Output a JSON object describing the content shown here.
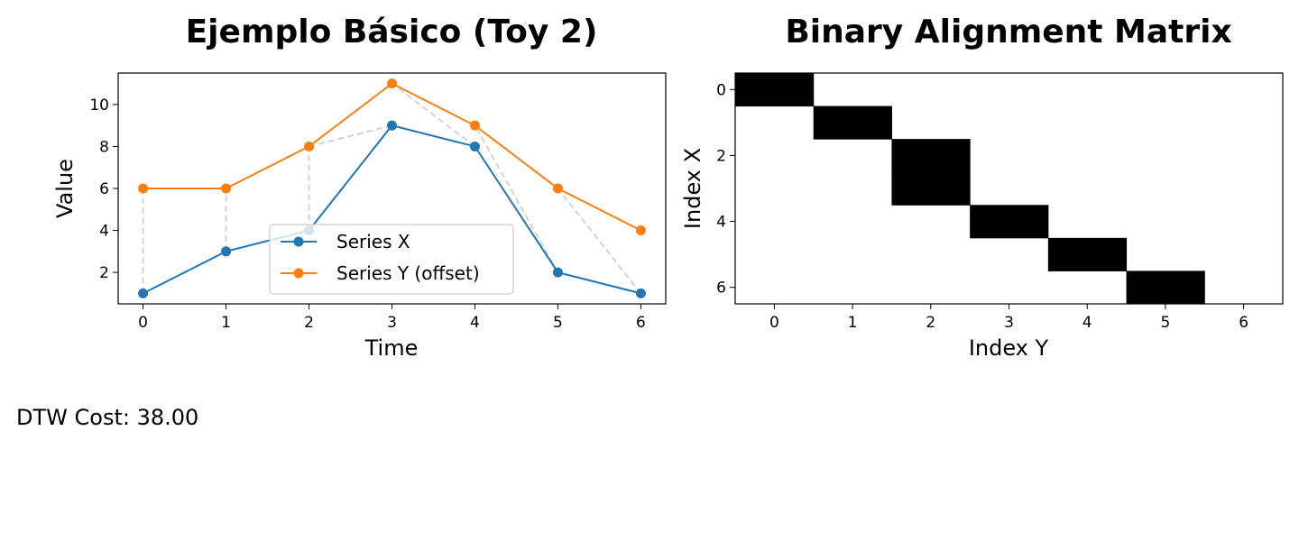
{
  "chart_data": [
    {
      "type": "line",
      "title": "Ejemplo Básico (Toy 2)",
      "xlabel": "Time",
      "ylabel": "Value",
      "x": [
        0,
        1,
        2,
        3,
        4,
        5,
        6
      ],
      "xlim": [
        -0.3,
        6.3
      ],
      "ylim": [
        0.5,
        11.5
      ],
      "xticks": [
        0,
        1,
        2,
        3,
        4,
        5,
        6
      ],
      "yticks": [
        2,
        4,
        6,
        8,
        10
      ],
      "grid": false,
      "legend_position": "lower-center",
      "series": [
        {
          "name": "Series X",
          "values": [
            1,
            3,
            4,
            9,
            8,
            2,
            1
          ],
          "color": "#1f77b4"
        },
        {
          "name": "Series Y (offset)",
          "values": [
            6,
            6,
            8,
            11,
            9,
            6,
            4
          ],
          "color": "#ff7f0e"
        }
      ],
      "alignment_color": "#d3d3d3",
      "alignment_path": [
        [
          0,
          0
        ],
        [
          1,
          1
        ],
        [
          2,
          2
        ],
        [
          3,
          2
        ],
        [
          4,
          3
        ],
        [
          5,
          4
        ],
        [
          6,
          5
        ]
      ]
    },
    {
      "type": "heatmap",
      "title": "Binary Alignment Matrix",
      "xlabel": "Index Y",
      "ylabel": "Index X",
      "xticks": [
        0,
        1,
        2,
        3,
        4,
        5,
        6
      ],
      "yticks": [
        0,
        2,
        4,
        6
      ],
      "colors": {
        "filled": "#000000",
        "empty": "#ffffff"
      },
      "matrix": [
        [
          1,
          0,
          0,
          0,
          0,
          0,
          0
        ],
        [
          0,
          1,
          0,
          0,
          0,
          0,
          0
        ],
        [
          0,
          0,
          1,
          0,
          0,
          0,
          0
        ],
        [
          0,
          0,
          1,
          0,
          0,
          0,
          0
        ],
        [
          0,
          0,
          0,
          1,
          0,
          0,
          0
        ],
        [
          0,
          0,
          0,
          0,
          1,
          0,
          0
        ],
        [
          0,
          0,
          0,
          0,
          0,
          1,
          0
        ]
      ]
    }
  ],
  "dtw_cost_text": "DTW Cost: 38.00"
}
